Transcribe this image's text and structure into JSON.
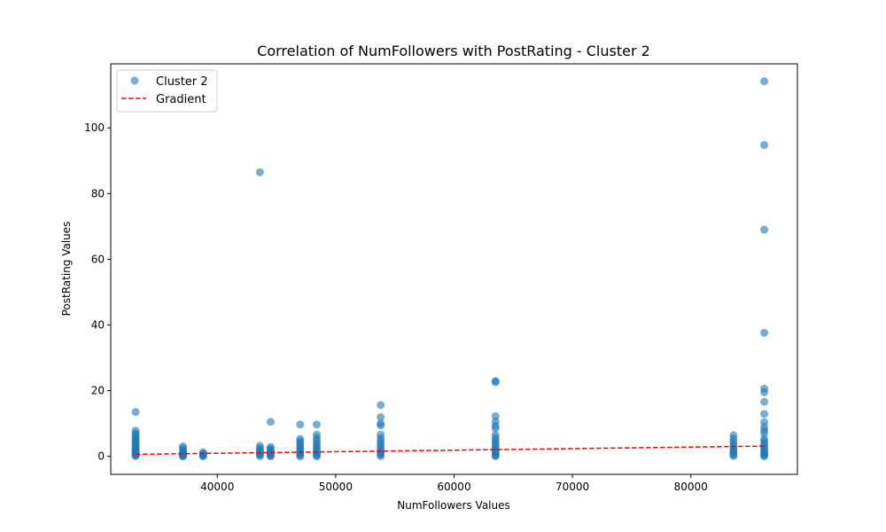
{
  "chart_data": {
    "type": "scatter",
    "title": "Correlation of NumFollowers with PostRating - Cluster 2",
    "xlabel": "NumFollowers Values",
    "ylabel": "PostRating Values",
    "xlim": [
      31000,
      89000
    ],
    "ylim": [
      -5.5,
      119.5
    ],
    "xticks": [
      40000,
      50000,
      60000,
      70000,
      80000
    ],
    "xtick_labels": [
      "40000",
      "50000",
      "60000",
      "70000",
      "80000"
    ],
    "yticks": [
      0,
      20,
      40,
      60,
      80,
      100
    ],
    "ytick_labels": [
      "0",
      "20",
      "40",
      "60",
      "80",
      "100"
    ],
    "grid": false,
    "legend_placement": "top-left",
    "series": [
      {
        "name": "Cluster 2",
        "kind": "scatter",
        "color": "#1f77b4",
        "x_groups": [
          {
            "x": 33100,
            "y": [
              13.5,
              7.8,
              7.0,
              6.4,
              5.8,
              5.2,
              4.7,
              4.2,
              3.8,
              3.3,
              2.9,
              2.5,
              2.1,
              1.8,
              1.4,
              1.1,
              0.8,
              0.5,
              0.3,
              0.1
            ]
          },
          {
            "x": 37100,
            "y": [
              3.0,
              2.4,
              1.8,
              1.3,
              0.9,
              0.6,
              0.3,
              0.1,
              0.0
            ]
          },
          {
            "x": 38800,
            "y": [
              1.2,
              0.8,
              0.5,
              0.2,
              0.0
            ]
          },
          {
            "x": 43600,
            "y": [
              86.5,
              3.2,
              2.5,
              1.9,
              1.3,
              0.8,
              0.4,
              0.1
            ]
          },
          {
            "x": 44500,
            "y": [
              10.5,
              2.8,
              2.3,
              1.8,
              1.3,
              0.9,
              0.5,
              0.2,
              0.0
            ]
          },
          {
            "x": 47000,
            "y": [
              9.7,
              5.3,
              4.6,
              3.9,
              3.2,
              2.5,
              1.9,
              1.3,
              0.8,
              0.3,
              0.0
            ]
          },
          {
            "x": 48400,
            "y": [
              9.7,
              6.6,
              5.6,
              4.8,
              4.0,
              3.3,
              2.6,
              1.9,
              1.3,
              0.8,
              0.3,
              0.0
            ]
          },
          {
            "x": 53800,
            "y": [
              15.6,
              11.9,
              10.0,
              9.4,
              6.6,
              5.5,
              4.6,
              3.8,
              3.0,
              2.3,
              1.6,
              1.0,
              0.5,
              0.1
            ]
          },
          {
            "x": 63500,
            "y": [
              22.9,
              22.6,
              12.2,
              10.6,
              9.3,
              8.5,
              6.5,
              5.6,
              4.8,
              4.0,
              3.3,
              2.6,
              1.9,
              1.3,
              0.8,
              0.3,
              0.0
            ]
          },
          {
            "x": 83600,
            "y": [
              6.4,
              5.3,
              4.4,
              3.6,
              2.9,
              2.2,
              1.6,
              1.0,
              0.5,
              0.1
            ]
          },
          {
            "x": 86200,
            "y": [
              114.2,
              94.8,
              69.0,
              37.6,
              20.6,
              19.5,
              16.6,
              12.9,
              10.4,
              8.9,
              7.9,
              7.0,
              5.3,
              4.6,
              3.8,
              3.1,
              2.4,
              1.8,
              1.2,
              0.7,
              0.3,
              0.0
            ]
          }
        ]
      },
      {
        "name": "Gradient",
        "kind": "line",
        "color": "#ff0000",
        "dashed": true,
        "x": [
          33100,
          86200
        ],
        "y": [
          0.6,
          3.1
        ]
      }
    ]
  }
}
